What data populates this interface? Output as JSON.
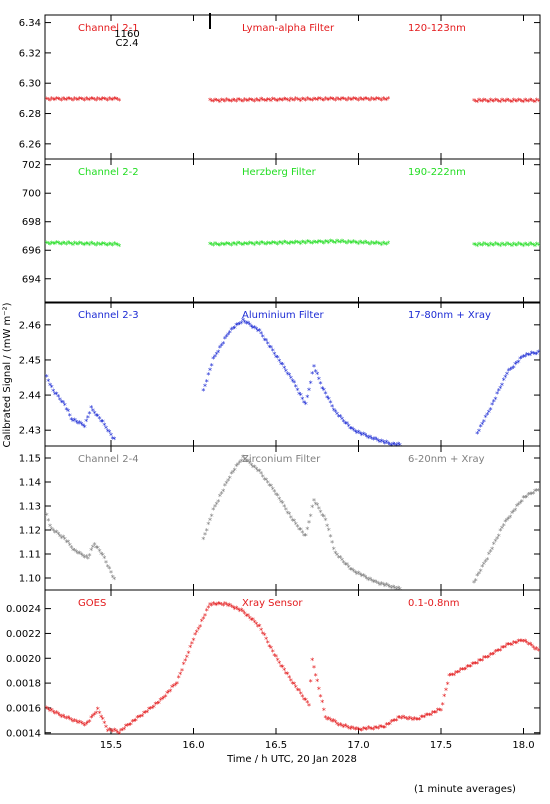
{
  "figure": {
    "ylabel": "Calibrated Signal / (mW m⁻²)",
    "xlabel": "Time / h UTC, 20 Jan 2028",
    "footnote": "(1 minute averages)",
    "xticks": [
      15.5,
      16.0,
      16.5,
      17.0,
      17.5,
      18.0
    ],
    "xtick_labels": [
      "15.5",
      "16.0",
      "16.5",
      "17.0",
      "17.5",
      "18.0"
    ],
    "xlim": [
      15.1,
      18.1
    ]
  },
  "chart_data": [
    {
      "type": "scatter",
      "color": "#e31a1c",
      "annotations": [
        "Channel 2-1",
        "Lyman-alpha Filter",
        "120-123nm"
      ],
      "marker_text": [
        "1160",
        "C2.4"
      ],
      "marker_x": 16.1,
      "ylim": [
        6.25,
        6.345
      ],
      "yticks": [
        6.26,
        6.28,
        6.3,
        6.32,
        6.34
      ],
      "ytick_labels": [
        "6.26",
        "6.28",
        "6.30",
        "6.32",
        "6.34"
      ],
      "points": [
        [
          15.1,
          6.289
        ],
        [
          15.55,
          6.289
        ],
        [
          16.1,
          6.288
        ],
        [
          16.8,
          6.289
        ],
        [
          17.18,
          6.289
        ],
        [
          17.7,
          6.288
        ],
        [
          18.1,
          6.288
        ]
      ],
      "gaps": [
        [
          15.55,
          16.1
        ],
        [
          17.18,
          17.7
        ]
      ]
    },
    {
      "type": "scatter",
      "color": "#22dd22",
      "annotations": [
        "Channel 2-2",
        "Herzberg Filter",
        "190-222nm"
      ],
      "ylim": [
        692.3,
        702.4
      ],
      "yticks": [
        694,
        696,
        698,
        700,
        702
      ],
      "ytick_labels": [
        "694",
        "696",
        "698",
        "700",
        "702"
      ],
      "points": [
        [
          15.1,
          696.45
        ],
        [
          15.55,
          696.35
        ],
        [
          16.1,
          696.35
        ],
        [
          16.88,
          696.55
        ],
        [
          17.18,
          696.4
        ],
        [
          17.7,
          696.35
        ],
        [
          18.1,
          696.35
        ]
      ],
      "gaps": [
        [
          15.55,
          16.1
        ],
        [
          17.18,
          17.7
        ]
      ]
    },
    {
      "type": "scatter",
      "color": "#1c2bd4",
      "annotations": [
        "Channel 2-3",
        "Aluminium Filter",
        "17-80nm + Xray"
      ],
      "ylim": [
        2.4255,
        2.4665
      ],
      "yticks": [
        2.43,
        2.44,
        2.45,
        2.46
      ],
      "ytick_labels": [
        "2.43",
        "2.44",
        "2.45",
        "2.46"
      ],
      "points": [
        [
          15.1,
          2.446
        ],
        [
          15.15,
          2.441
        ],
        [
          15.22,
          2.437
        ],
        [
          15.26,
          2.433
        ],
        [
          15.34,
          2.431
        ],
        [
          15.38,
          2.436
        ],
        [
          15.45,
          2.432
        ],
        [
          15.52,
          2.427
        ],
        [
          16.06,
          2.441
        ],
        [
          16.12,
          2.45
        ],
        [
          16.22,
          2.458
        ],
        [
          16.3,
          2.461
        ],
        [
          16.4,
          2.458
        ],
        [
          16.5,
          2.451
        ],
        [
          16.6,
          2.444
        ],
        [
          16.68,
          2.437
        ],
        [
          16.73,
          2.448
        ],
        [
          16.78,
          2.442
        ],
        [
          16.86,
          2.435
        ],
        [
          16.96,
          2.43
        ],
        [
          17.08,
          2.4275
        ],
        [
          17.18,
          2.426
        ],
        [
          17.25,
          2.4255
        ],
        [
          17.72,
          2.429
        ],
        [
          17.8,
          2.436
        ],
        [
          17.9,
          2.446
        ],
        [
          18.0,
          2.451
        ],
        [
          18.1,
          2.452
        ]
      ],
      "gaps": [
        [
          15.52,
          16.06
        ],
        [
          17.25,
          17.72
        ]
      ]
    },
    {
      "type": "scatter",
      "color": "#808080",
      "annotations": [
        "Channel 2-4",
        "Zirconium Filter",
        "6-20nm + Xray"
      ],
      "ylim": [
        1.095,
        1.155
      ],
      "yticks": [
        1.1,
        1.11,
        1.12,
        1.13,
        1.14,
        1.15
      ],
      "ytick_labels": [
        "1.10",
        "1.11",
        "1.12",
        "1.13",
        "1.14",
        "1.15"
      ],
      "points": [
        [
          15.1,
          1.128
        ],
        [
          15.14,
          1.12
        ],
        [
          15.22,
          1.116
        ],
        [
          15.28,
          1.111
        ],
        [
          15.36,
          1.108
        ],
        [
          15.4,
          1.114
        ],
        [
          15.46,
          1.108
        ],
        [
          15.52,
          1.099
        ],
        [
          16.06,
          1.116
        ],
        [
          16.12,
          1.128
        ],
        [
          16.22,
          1.142
        ],
        [
          16.3,
          1.15
        ],
        [
          16.4,
          1.144
        ],
        [
          16.5,
          1.135
        ],
        [
          16.6,
          1.124
        ],
        [
          16.68,
          1.117
        ],
        [
          16.73,
          1.132
        ],
        [
          16.8,
          1.124
        ],
        [
          16.86,
          1.11
        ],
        [
          16.96,
          1.103
        ],
        [
          17.1,
          1.098
        ],
        [
          17.2,
          1.096
        ],
        [
          17.25,
          1.095
        ],
        [
          17.7,
          1.098
        ],
        [
          17.78,
          1.108
        ],
        [
          17.88,
          1.122
        ],
        [
          18.0,
          1.133
        ],
        [
          18.1,
          1.137
        ]
      ],
      "gaps": [
        [
          15.52,
          16.06
        ],
        [
          17.25,
          17.7
        ]
      ]
    },
    {
      "type": "scatter",
      "color": "#e31a1c",
      "annotations": [
        "GOES",
        "Xray Sensor",
        "0.1-0.8nm"
      ],
      "ylim": [
        0.00139,
        0.00255
      ],
      "yticks": [
        0.0014,
        0.0016,
        0.0018,
        0.002,
        0.0022,
        0.0024
      ],
      "ytick_labels": [
        "0.0014",
        "0.0016",
        "0.0018",
        "0.0020",
        "0.0022",
        "0.0024"
      ],
      "points": [
        [
          15.1,
          0.0016
        ],
        [
          15.2,
          0.00153
        ],
        [
          15.3,
          0.00148
        ],
        [
          15.35,
          0.00146
        ],
        [
          15.42,
          0.00158
        ],
        [
          15.48,
          0.00142
        ],
        [
          15.55,
          0.0014
        ],
        [
          15.65,
          0.0015
        ],
        [
          15.8,
          0.00165
        ],
        [
          15.9,
          0.0018
        ],
        [
          16.0,
          0.00215
        ],
        [
          16.1,
          0.00243
        ],
        [
          16.2,
          0.00243
        ],
        [
          16.3,
          0.00237
        ],
        [
          16.4,
          0.00225
        ],
        [
          16.5,
          0.002
        ],
        [
          16.6,
          0.0018
        ],
        [
          16.7,
          0.00162
        ],
        [
          16.72,
          0.00198
        ],
        [
          16.8,
          0.00152
        ],
        [
          16.9,
          0.00145
        ],
        [
          17.0,
          0.00142
        ],
        [
          17.15,
          0.00144
        ],
        [
          17.25,
          0.00152
        ],
        [
          17.35,
          0.0015
        ],
        [
          17.5,
          0.00158
        ],
        [
          17.55,
          0.00185
        ],
        [
          17.7,
          0.00195
        ],
        [
          17.8,
          0.00202
        ],
        [
          17.9,
          0.0021
        ],
        [
          18.0,
          0.00214
        ],
        [
          18.1,
          0.00205
        ]
      ],
      "gaps": []
    }
  ]
}
